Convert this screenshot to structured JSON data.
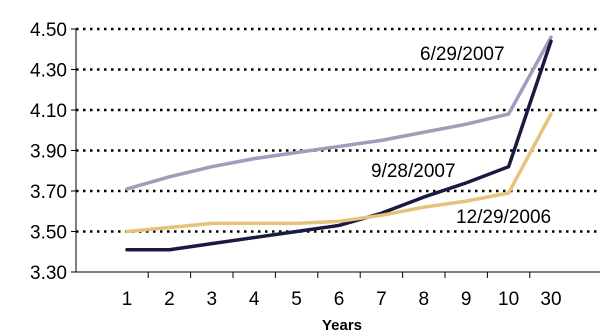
{
  "chart_data": {
    "type": "line",
    "title": "",
    "xlabel": "Years",
    "ylabel": "",
    "categories": [
      "1",
      "2",
      "3",
      "4",
      "5",
      "6",
      "7",
      "8",
      "9",
      "10",
      "30"
    ],
    "ylim": [
      3.3,
      4.5
    ],
    "yticks": [
      "3.30",
      "3.50",
      "3.70",
      "3.90",
      "4.10",
      "4.30",
      "4.50"
    ],
    "grid": "horizontal dotted",
    "series": [
      {
        "name": "6/29/2007",
        "color": "#a09cbb",
        "values": [
          3.71,
          3.77,
          3.82,
          3.86,
          3.89,
          3.92,
          3.95,
          3.99,
          4.03,
          4.08,
          4.46
        ]
      },
      {
        "name": "9/28/2007",
        "color": "#1a1a40",
        "values": [
          3.41,
          3.41,
          3.44,
          3.47,
          3.5,
          3.53,
          3.59,
          3.67,
          3.74,
          3.82,
          4.44
        ]
      },
      {
        "name": "12/29/2006",
        "color": "#e6c27a",
        "values": [
          3.5,
          3.52,
          3.54,
          3.54,
          3.54,
          3.55,
          3.58,
          3.62,
          3.65,
          3.69,
          4.08
        ]
      }
    ]
  }
}
